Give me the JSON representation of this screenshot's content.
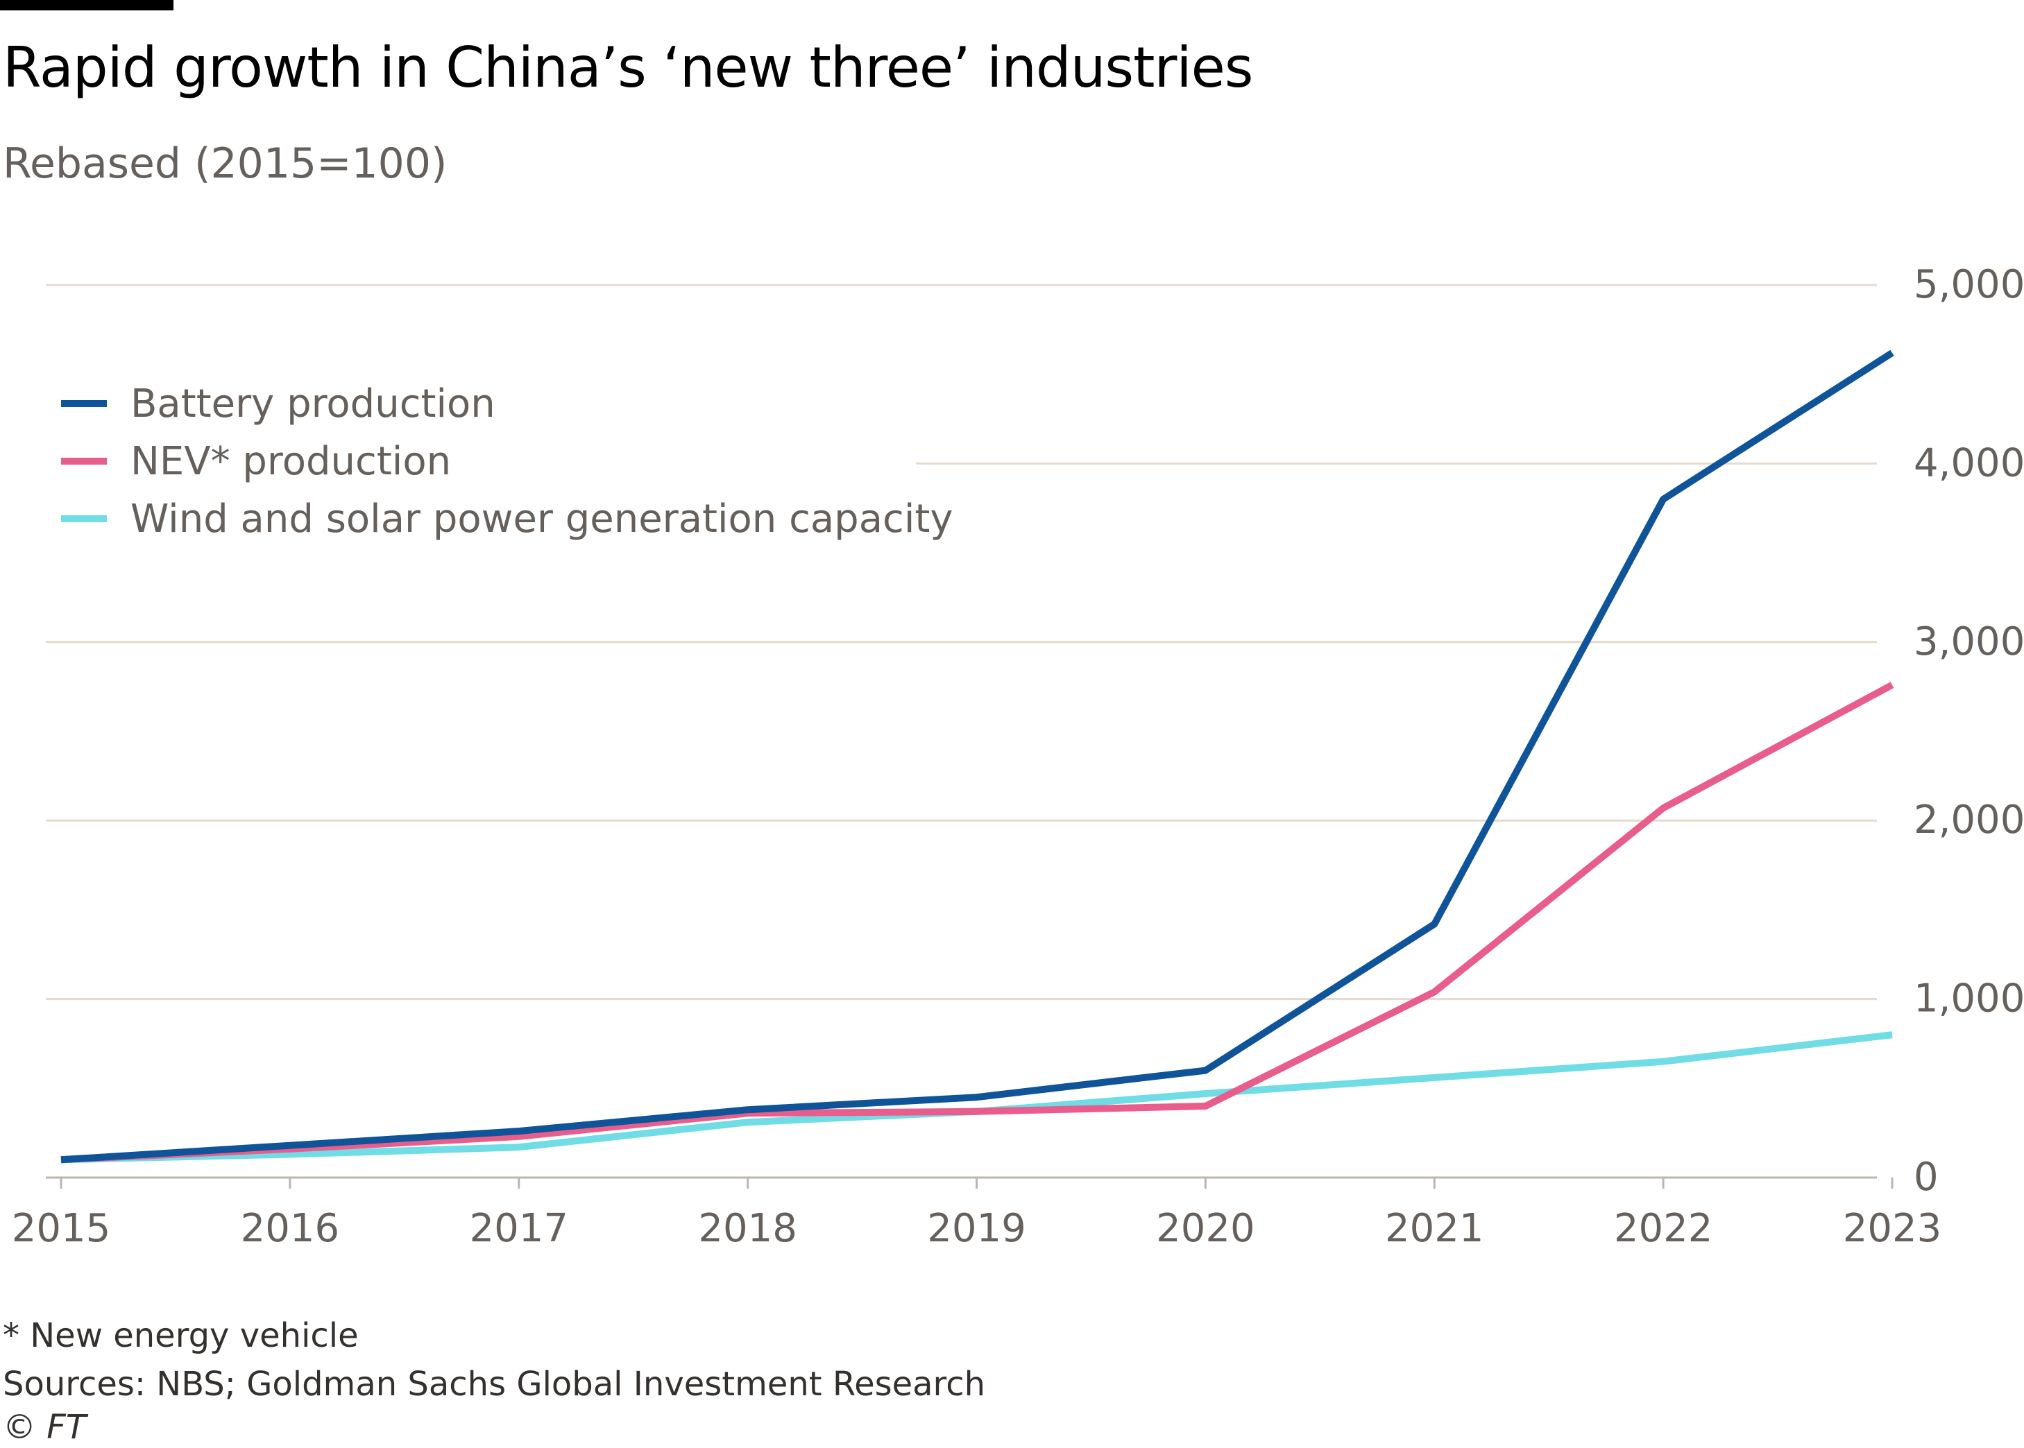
{
  "title": "Rapid growth in China’s ‘new three’ industries",
  "subtitle": "Rebased (2015=100)",
  "footnotes": {
    "note": "* New energy vehicle",
    "sources": "Sources: NBS; Goldman Sachs Global Investment Research",
    "copyright": "© FT"
  },
  "chart_data": {
    "type": "line",
    "title": "Rapid growth in China’s ‘new three’ industries",
    "subtitle": "Rebased (2015=100)",
    "x": [
      2015,
      2016,
      2017,
      2018,
      2019,
      2020,
      2021,
      2022,
      2023
    ],
    "x_tick_labels": [
      "2015",
      "2016",
      "2017",
      "2018",
      "2019",
      "2020",
      "2021",
      "2022",
      "2023"
    ],
    "y_ticks": [
      0,
      1000,
      2000,
      3000,
      4000,
      5000
    ],
    "y_tick_labels": [
      "0",
      "1,000",
      "2,000",
      "3,000",
      "4,000",
      "5,000"
    ],
    "ylim": [
      0,
      5000
    ],
    "xlabel": "",
    "ylabel": "",
    "grid": true,
    "y_axis_side": "right",
    "legend_position": "top-left",
    "series": [
      {
        "name": "Battery production",
        "color": "#0f5499",
        "values": [
          100,
          180,
          260,
          380,
          450,
          600,
          1420,
          3800,
          4620
        ]
      },
      {
        "name": "NEV* production",
        "color": "#e95d8c",
        "values": [
          100,
          160,
          230,
          360,
          370,
          400,
          1040,
          2070,
          2760
        ]
      },
      {
        "name": "Wind and solar power generation capacity",
        "color": "#6fdce6",
        "values": [
          100,
          130,
          170,
          310,
          370,
          470,
          560,
          650,
          800
        ]
      }
    ]
  }
}
